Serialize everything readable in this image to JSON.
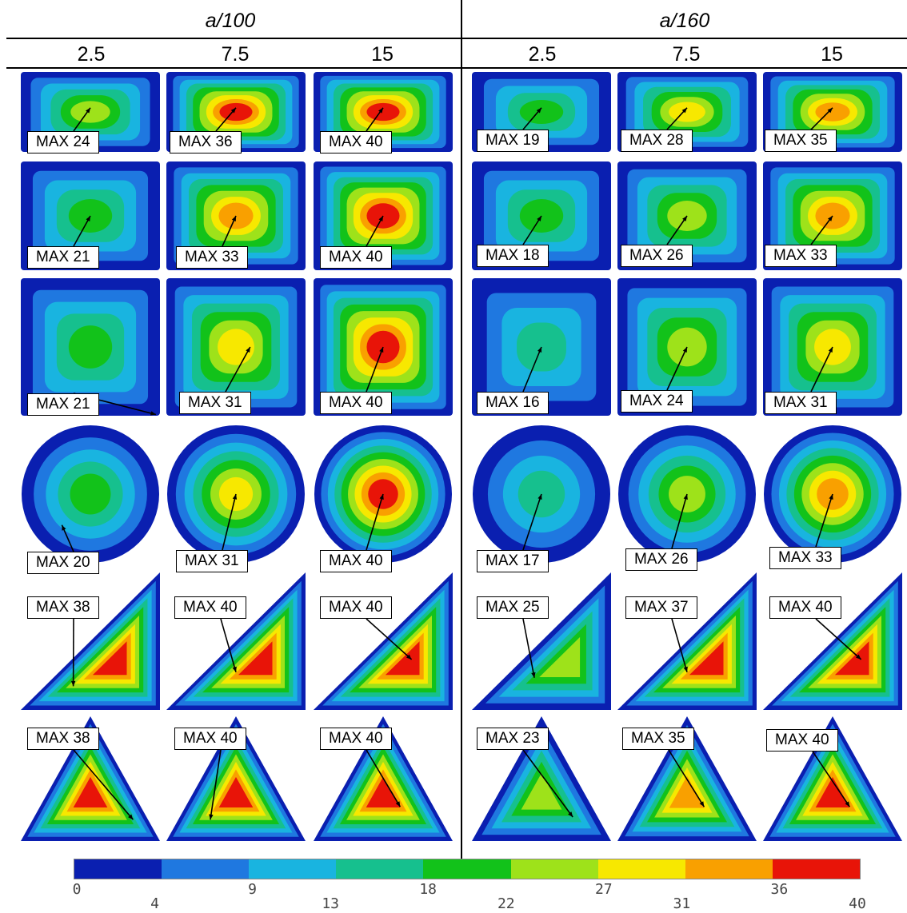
{
  "header": {
    "groups": [
      {
        "label": "a/100",
        "columns": [
          "2.5",
          "7.5",
          "15"
        ]
      },
      {
        "label": "a/160",
        "columns": [
          "2.5",
          "7.5",
          "15"
        ]
      }
    ]
  },
  "rows": [
    {
      "shape": "square",
      "max": [
        "MAX 24",
        "MAX 36",
        "MAX 40",
        "MAX 19",
        "MAX 28",
        "MAX 35"
      ],
      "values": [
        24,
        36,
        40,
        19,
        28,
        35
      ]
    },
    {
      "shape": "square",
      "max": [
        "MAX 21",
        "MAX 33",
        "MAX 40",
        "MAX 18",
        "MAX 26",
        "MAX 33"
      ],
      "values": [
        21,
        33,
        40,
        18,
        26,
        33
      ]
    },
    {
      "shape": "square",
      "max": [
        "MAX 21",
        "MAX 31",
        "MAX 40",
        "MAX 16",
        "MAX 24",
        "MAX 31"
      ],
      "values": [
        21,
        31,
        40,
        16,
        24,
        31
      ]
    },
    {
      "shape": "circle",
      "max": [
        "MAX 20",
        "MAX 31",
        "MAX 40",
        "MAX 17",
        "MAX 26",
        "MAX 33"
      ],
      "values": [
        20,
        31,
        40,
        17,
        26,
        33
      ]
    },
    {
      "shape": "right-triangle",
      "max": [
        "MAX 38",
        "MAX 40",
        "MAX 40",
        "MAX 25",
        "MAX 37",
        "MAX 40"
      ],
      "values": [
        38,
        40,
        40,
        25,
        37,
        40
      ]
    },
    {
      "shape": "equilateral-triangle",
      "max": [
        "MAX 38",
        "MAX 40",
        "MAX 40",
        "MAX 23",
        "MAX 35",
        "MAX 40"
      ],
      "values": [
        38,
        40,
        40,
        23,
        35,
        40
      ]
    }
  ],
  "colorbar": {
    "ticks_top": [
      "0",
      "9",
      "18",
      "27",
      "36"
    ],
    "ticks_bottom": [
      "4",
      "13",
      "22",
      "31",
      "40"
    ],
    "colors": [
      "#0a1fb0",
      "#1f78e0",
      "#19b4e0",
      "#16c08e",
      "#12c21a",
      "#9ee21a",
      "#f7e800",
      "#f9a000",
      "#e81408"
    ]
  }
}
